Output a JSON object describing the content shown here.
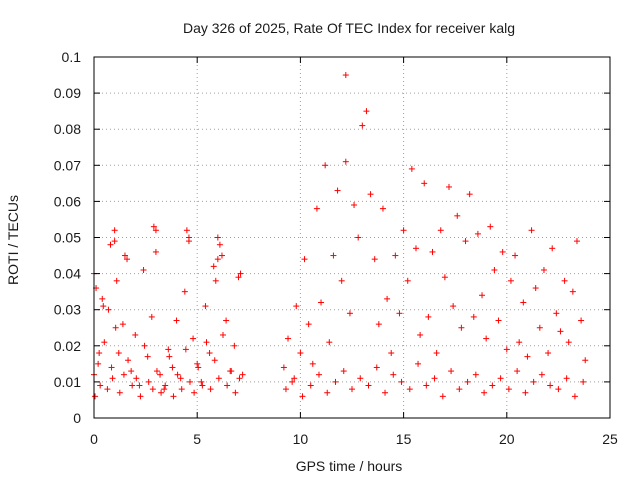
{
  "chart_data": {
    "type": "scatter",
    "title": "Day 326 of 2025, Rate Of TEC Index for receiver kalg",
    "xlabel": "GPS time / hours",
    "ylabel": "ROTI / TECUs",
    "xlim": [
      0,
      25
    ],
    "ylim": [
      0,
      0.1
    ],
    "x_ticks": [
      0,
      5,
      10,
      15,
      20,
      25
    ],
    "x_tick_labels": [
      "0",
      "5",
      "10",
      "15",
      "20",
      "25"
    ],
    "y_ticks": [
      0,
      0.01,
      0.02,
      0.03,
      0.04,
      0.05,
      0.06,
      0.07,
      0.08,
      0.09,
      0.1
    ],
    "y_tick_labels": [
      "0",
      "0.01",
      "0.02",
      "0.03",
      "0.04",
      "0.05",
      "0.06",
      "0.07",
      "0.08",
      "0.09",
      "0.1"
    ],
    "grid": true,
    "marker": "+",
    "marker_color": "#ff0000",
    "series": [
      {
        "x": [
          0.0,
          0.1,
          0.2,
          0.3,
          0.5,
          0.7,
          0.9,
          1.0,
          1.2,
          1.4,
          1.6,
          1.8,
          2.0,
          2.2,
          2.4,
          2.6,
          2.8,
          3.0,
          3.2,
          3.4,
          3.6,
          3.8,
          4.0,
          4.2,
          4.4,
          4.6,
          4.8,
          5.0,
          5.2,
          5.4,
          5.6,
          5.8,
          6.0,
          6.2,
          6.4,
          6.6,
          6.8,
          7.0,
          7.2,
          0.05,
          0.25,
          0.45,
          0.65,
          0.85,
          1.05,
          1.25,
          1.45,
          1.65,
          1.85,
          2.05,
          2.25,
          2.45,
          2.65,
          2.85,
          3.05,
          3.25,
          3.45,
          3.65,
          3.85,
          4.05,
          4.25,
          4.45,
          4.65,
          4.85,
          5.05,
          5.25,
          5.45,
          5.65,
          5.85,
          6.05,
          6.25,
          6.45,
          6.65,
          6.85,
          7.05,
          0.0,
          0.4,
          0.8,
          1.0,
          1.1,
          1.5,
          2.9,
          3.0,
          4.5,
          4.6,
          5.9,
          6.0,
          6.1,
          7.1
        ],
        "y": [
          0.012,
          0.036,
          0.015,
          0.009,
          0.021,
          0.03,
          0.011,
          0.052,
          0.018,
          0.026,
          0.044,
          0.013,
          0.023,
          0.009,
          0.041,
          0.017,
          0.028,
          0.052,
          0.012,
          0.008,
          0.019,
          0.014,
          0.027,
          0.011,
          0.035,
          0.049,
          0.022,
          0.015,
          0.01,
          0.031,
          0.018,
          0.042,
          0.05,
          0.045,
          0.027,
          0.013,
          0.02,
          0.039,
          0.012,
          0.006,
          0.018,
          0.031,
          0.008,
          0.014,
          0.025,
          0.007,
          0.012,
          0.016,
          0.009,
          0.011,
          0.006,
          0.02,
          0.01,
          0.008,
          0.013,
          0.007,
          0.009,
          0.017,
          0.006,
          0.012,
          0.008,
          0.019,
          0.01,
          0.007,
          0.014,
          0.009,
          0.021,
          0.008,
          0.016,
          0.011,
          0.023,
          0.009,
          0.013,
          0.007,
          0.011,
          0.04,
          0.033,
          0.048,
          0.049,
          0.038,
          0.045,
          0.053,
          0.046,
          0.052,
          0.05,
          0.038,
          0.044,
          0.048,
          0.04
        ]
      },
      {
        "x": [
          9.2,
          9.4,
          9.6,
          9.8,
          10.0,
          10.2,
          10.4,
          10.6,
          10.8,
          11.0,
          11.2,
          11.4,
          11.6,
          11.8,
          12.0,
          12.2,
          12.4,
          12.6,
          12.8,
          13.0,
          13.2,
          13.4,
          13.6,
          13.8,
          14.0,
          14.2,
          14.4,
          14.6,
          14.8,
          15.0,
          15.2,
          15.4,
          15.6,
          15.8,
          16.0,
          16.2,
          16.4,
          16.6,
          16.8,
          17.0,
          17.2,
          17.4,
          17.6,
          17.8,
          18.0,
          18.2,
          18.4,
          18.6,
          18.8,
          19.0,
          19.2,
          19.4,
          19.6,
          19.8,
          20.0,
          20.2,
          20.4,
          20.6,
          20.8,
          21.0,
          21.2,
          21.4,
          21.6,
          21.8,
          22.0,
          22.2,
          22.4,
          22.6,
          22.8,
          23.0,
          23.2,
          23.4,
          23.6,
          23.8,
          9.3,
          9.7,
          10.1,
          10.5,
          10.9,
          11.3,
          11.7,
          12.1,
          12.5,
          12.9,
          13.3,
          13.7,
          14.1,
          14.5,
          14.9,
          15.3,
          15.7,
          16.1,
          16.5,
          16.9,
          17.3,
          17.7,
          18.1,
          18.5,
          18.9,
          19.3,
          19.7,
          20.1,
          20.5,
          20.9,
          21.3,
          21.7,
          22.1,
          22.5,
          22.9,
          23.3,
          23.7
        ],
        "y": [
          0.014,
          0.022,
          0.01,
          0.031,
          0.018,
          0.044,
          0.026,
          0.015,
          0.058,
          0.032,
          0.07,
          0.021,
          0.045,
          0.063,
          0.038,
          0.071,
          0.029,
          0.059,
          0.05,
          0.081,
          0.085,
          0.062,
          0.044,
          0.026,
          0.058,
          0.033,
          0.018,
          0.045,
          0.029,
          0.052,
          0.038,
          0.069,
          0.047,
          0.023,
          0.065,
          0.028,
          0.046,
          0.018,
          0.052,
          0.039,
          0.064,
          0.031,
          0.056,
          0.025,
          0.049,
          0.062,
          0.028,
          0.051,
          0.034,
          0.022,
          0.053,
          0.041,
          0.027,
          0.046,
          0.019,
          0.038,
          0.045,
          0.021,
          0.032,
          0.017,
          0.052,
          0.036,
          0.025,
          0.041,
          0.018,
          0.047,
          0.029,
          0.024,
          0.038,
          0.021,
          0.035,
          0.049,
          0.027,
          0.016,
          0.008,
          0.011,
          0.006,
          0.009,
          0.012,
          0.007,
          0.01,
          0.013,
          0.008,
          0.011,
          0.009,
          0.014,
          0.007,
          0.012,
          0.01,
          0.008,
          0.015,
          0.009,
          0.011,
          0.006,
          0.013,
          0.008,
          0.01,
          0.012,
          0.007,
          0.009,
          0.011,
          0.008,
          0.013,
          0.007,
          0.01,
          0.012,
          0.009,
          0.008,
          0.011,
          0.006,
          0.01
        ]
      },
      {
        "x": [
          12.2
        ],
        "y": [
          0.095
        ]
      }
    ]
  }
}
